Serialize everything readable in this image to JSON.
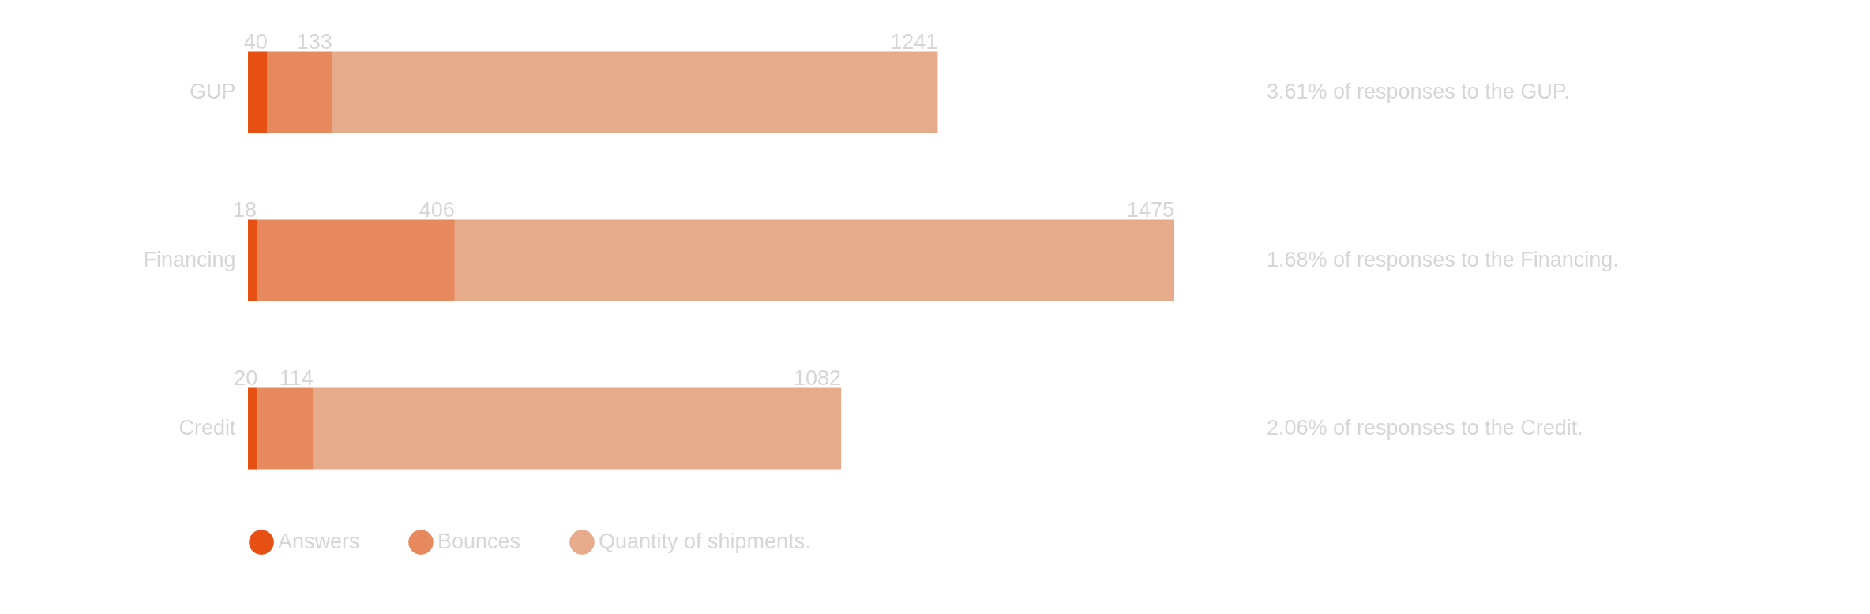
{
  "chart_data": {
    "type": "bar",
    "orientation": "horizontal",
    "stacked": true,
    "data_labels": true,
    "legend": "bottom left",
    "categories": [
      "GUP",
      "Financing",
      "Credit"
    ],
    "series": [
      {
        "name": "Answers",
        "color": "#e65113",
        "values": [
          40,
          18,
          20
        ]
      },
      {
        "name": "Bounces",
        "color": "#e68a5e",
        "values": [
          133,
          406,
          114
        ]
      },
      {
        "name": "Quantity of shipments.",
        "color": "#e5ab8a",
        "values": [
          1241,
          1475,
          1082
        ]
      }
    ],
    "annotations": [
      "3.61% of responses to the GUP.",
      "1.68% of responses to the Financing.",
      "2.06% of responses to the Credit."
    ]
  }
}
